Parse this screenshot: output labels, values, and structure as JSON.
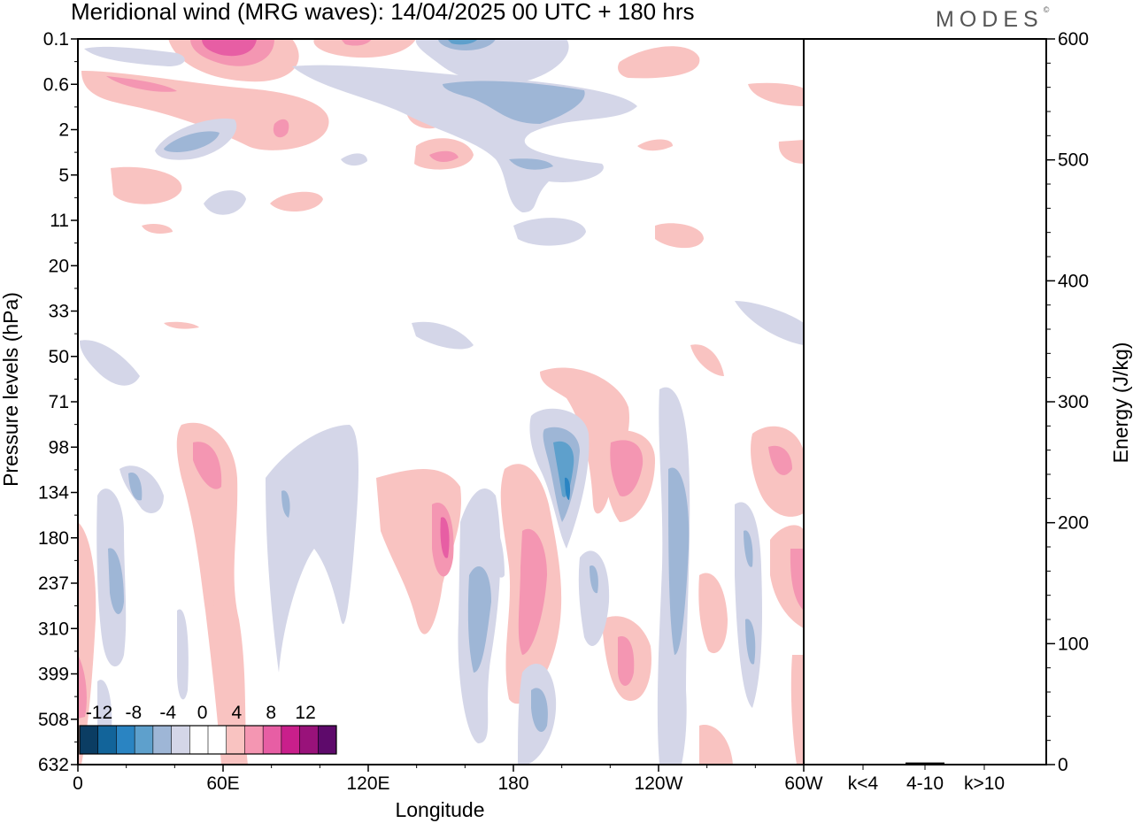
{
  "title": "Meridional wind (MRG waves):  14/04/2025  00 UTC  + 180 hrs",
  "logo": "MODES",
  "logo_mark": "©",
  "chart_data": [
    {
      "type": "heatmap",
      "title": "Meridional wind (MRG waves):  14/04/2025  00 UTC  + 180 hrs",
      "xlabel": "Longitude",
      "ylabel": "Pressure levels (hPa)",
      "x_ticks": [
        "0",
        "60E",
        "120E",
        "180",
        "120W",
        "60W"
      ],
      "y_ticks": [
        "0.1",
        "0.6",
        "2",
        "5",
        "11",
        "20",
        "33",
        "50",
        "71",
        "98",
        "134",
        "180",
        "237",
        "310",
        "399",
        "508",
        "632"
      ],
      "colorbar": {
        "labels": [
          "-12",
          "-8",
          "-4",
          "0",
          "4",
          "8",
          "12"
        ],
        "colors": [
          "#0b3d63",
          "#12649a",
          "#2a84c2",
          "#5ea0cc",
          "#9eb6d6",
          "#d4d6e8",
          "#ffffff",
          "#ffffff",
          "#f9c3c1",
          "#f496b2",
          "#e75ea4",
          "#c91f8b",
          "#99127a",
          "#5e0a6b"
        ]
      },
      "colors": {
        "pos_light": "#f9c3c1",
        "pos_mid": "#f496b2",
        "pos_dark": "#e75ea4",
        "pos_deep": "#c91f8b",
        "neg_light": "#d4d6e8",
        "neg_mid": "#9eb6d6",
        "neg_dark": "#5ea0cc",
        "neg_deep": "#2a84c2"
      }
    },
    {
      "type": "bar",
      "categories": [
        "k<4",
        "4-10",
        "k>10"
      ],
      "values": [
        0,
        1,
        0
      ],
      "ylabel": "Energy (J/kg)",
      "ylim": [
        0,
        600
      ],
      "y_ticks": [
        "0",
        "100",
        "200",
        "300",
        "400",
        "500",
        "600"
      ]
    }
  ]
}
